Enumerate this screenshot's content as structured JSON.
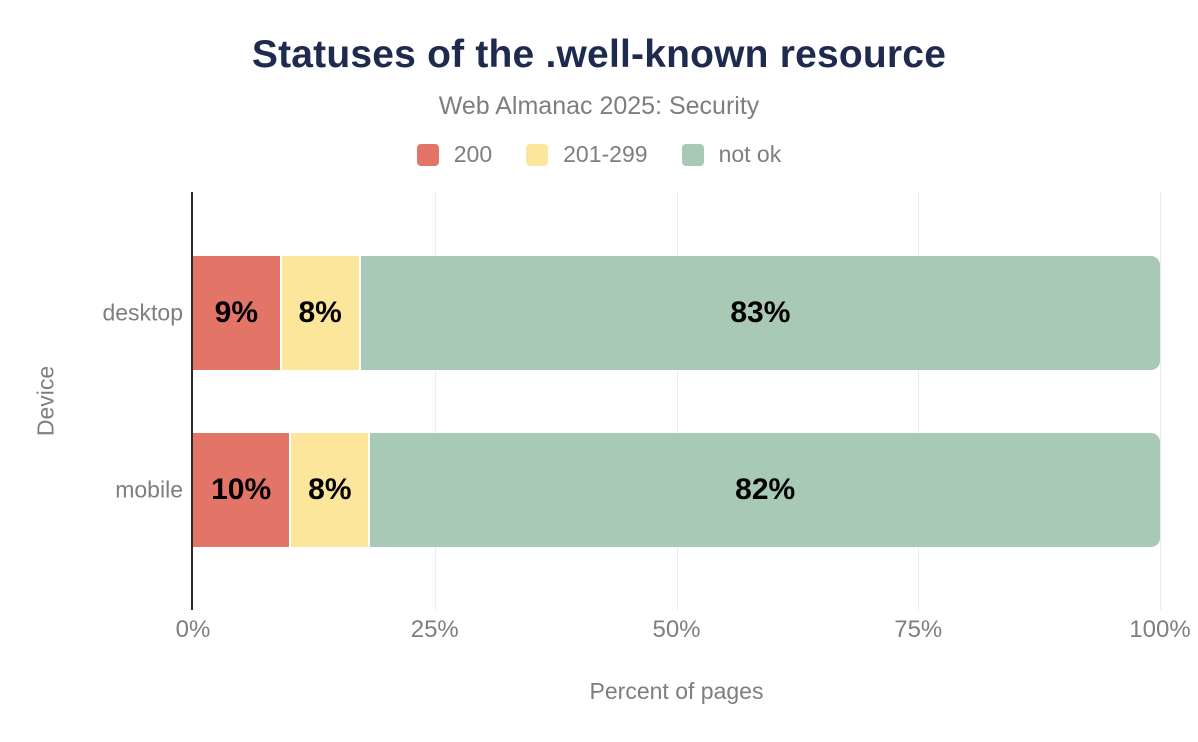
{
  "header": {
    "title": "Statuses of the .well-known resource",
    "subtitle": "Web Almanac 2025: Security"
  },
  "chart_data": {
    "type": "bar",
    "orientation": "horizontal",
    "stacked": true,
    "title": "Statuses of the .well-known resource",
    "subtitle": "Web Almanac 2025: Security",
    "categories": [
      "desktop",
      "mobile"
    ],
    "series": [
      {
        "name": "200",
        "color": "#e27468",
        "values": [
          9,
          10
        ]
      },
      {
        "name": "201-299",
        "color": "#fce69c",
        "values": [
          8,
          8
        ]
      },
      {
        "name": "not ok",
        "color": "#a7c9b6",
        "values": [
          83,
          82
        ]
      }
    ],
    "value_labels": {
      "desktop": [
        "9%",
        "8%",
        "83%"
      ],
      "mobile": [
        "10%",
        "8%",
        "82%"
      ]
    },
    "xlabel": "Percent of pages",
    "ylabel": "Device",
    "xlim": [
      0,
      100
    ],
    "xticks": [
      {
        "value": 0,
        "label": "0%"
      },
      {
        "value": 25,
        "label": "25%"
      },
      {
        "value": 50,
        "label": "50%"
      },
      {
        "value": 75,
        "label": "75%"
      },
      {
        "value": 100,
        "label": "100%"
      }
    ],
    "grid": "vertical",
    "legend_position": "top"
  },
  "colors": {
    "title_text": "#1f2b4e",
    "muted_text": "#7e7e7e",
    "axis_line": "#2b2b2b",
    "gridline": "#ededed",
    "bar_value_text": "#000000"
  }
}
